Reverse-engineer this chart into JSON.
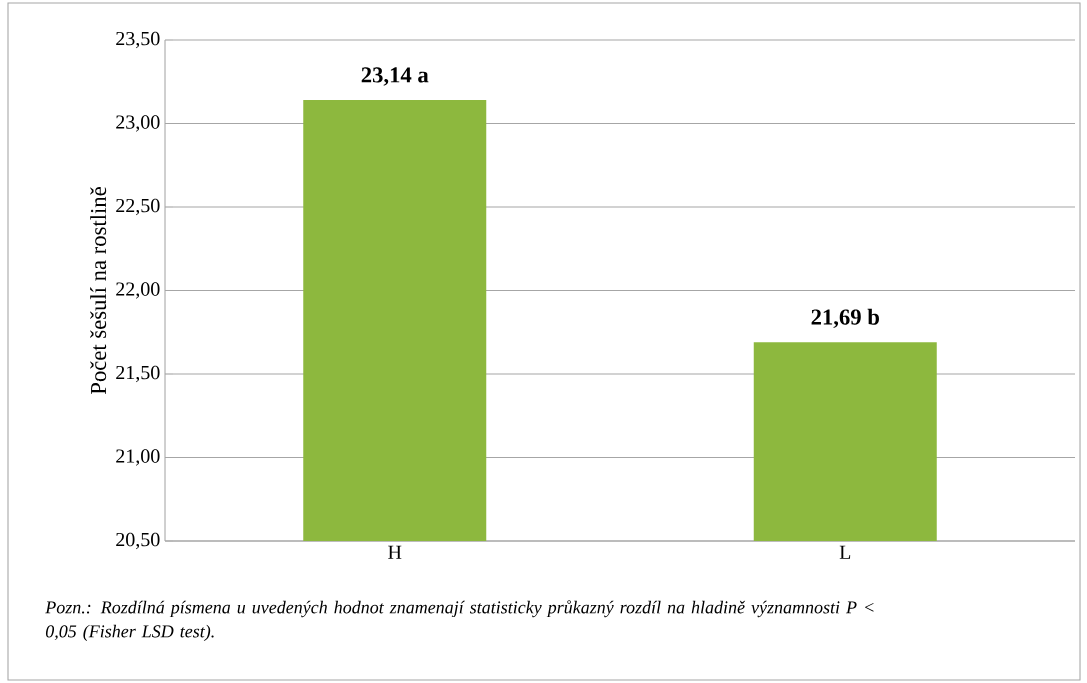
{
  "chart_data": {
    "type": "bar",
    "ylabel": "Počet šešulí na rostlině",
    "categories": [
      "H",
      "L"
    ],
    "values": [
      23.14,
      21.69
    ],
    "value_labels": [
      "23,14 a",
      "21,69 b"
    ],
    "color": "#8db83e",
    "ylim": [
      20.5,
      23.5
    ],
    "yticks": [
      {
        "value": 20.5,
        "label": "20,50"
      },
      {
        "value": 21.0,
        "label": "21,00"
      },
      {
        "value": 21.5,
        "label": "21,50"
      },
      {
        "value": 22.0,
        "label": "22,00"
      },
      {
        "value": 22.5,
        "label": "22,50"
      },
      {
        "value": 23.0,
        "label": "23,00"
      },
      {
        "value": 23.5,
        "label": "23,50"
      }
    ],
    "grid": "y",
    "annotations": [
      "Pozn.: Rozdílná písmena u uvedených hodnot znamenají statisticky průkazný rozdíl na hladině významnosti P < 0,05 (Fisher LSD test)."
    ]
  }
}
